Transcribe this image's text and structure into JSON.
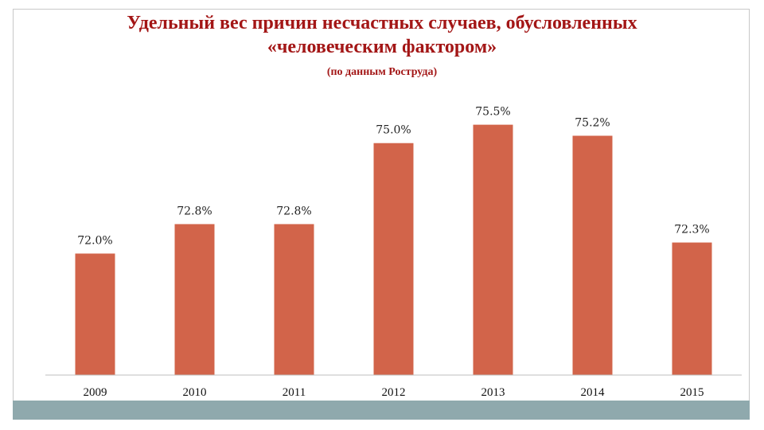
{
  "title": {
    "line1": "Удельный вес причин несчастных случаев, обусловленных",
    "line2": "«человеческим фактором»"
  },
  "subtitle": "(по данным Роструда)",
  "colors": {
    "bar": "#d2644a",
    "title": "#a31616",
    "footer": "#8fa9ad"
  },
  "chart_data": {
    "type": "bar",
    "categories": [
      "2009",
      "2010",
      "2011",
      "2012",
      "2013",
      "2014",
      "2015"
    ],
    "values": [
      72.0,
      72.8,
      72.8,
      75.0,
      75.5,
      75.2,
      72.3
    ],
    "data_labels": [
      "72.0%",
      "72.8%",
      "72.8%",
      "75.0%",
      "75.5%",
      "75.2%",
      "72.3%"
    ],
    "title": "Удельный вес причин несчастных случаев, обусловленных «человеческим фактором»",
    "subtitle": "(по данным Роструда)",
    "xlabel": "",
    "ylabel": "",
    "ylim": [
      68.7,
      76.4
    ],
    "grid": false,
    "legend": "none"
  }
}
